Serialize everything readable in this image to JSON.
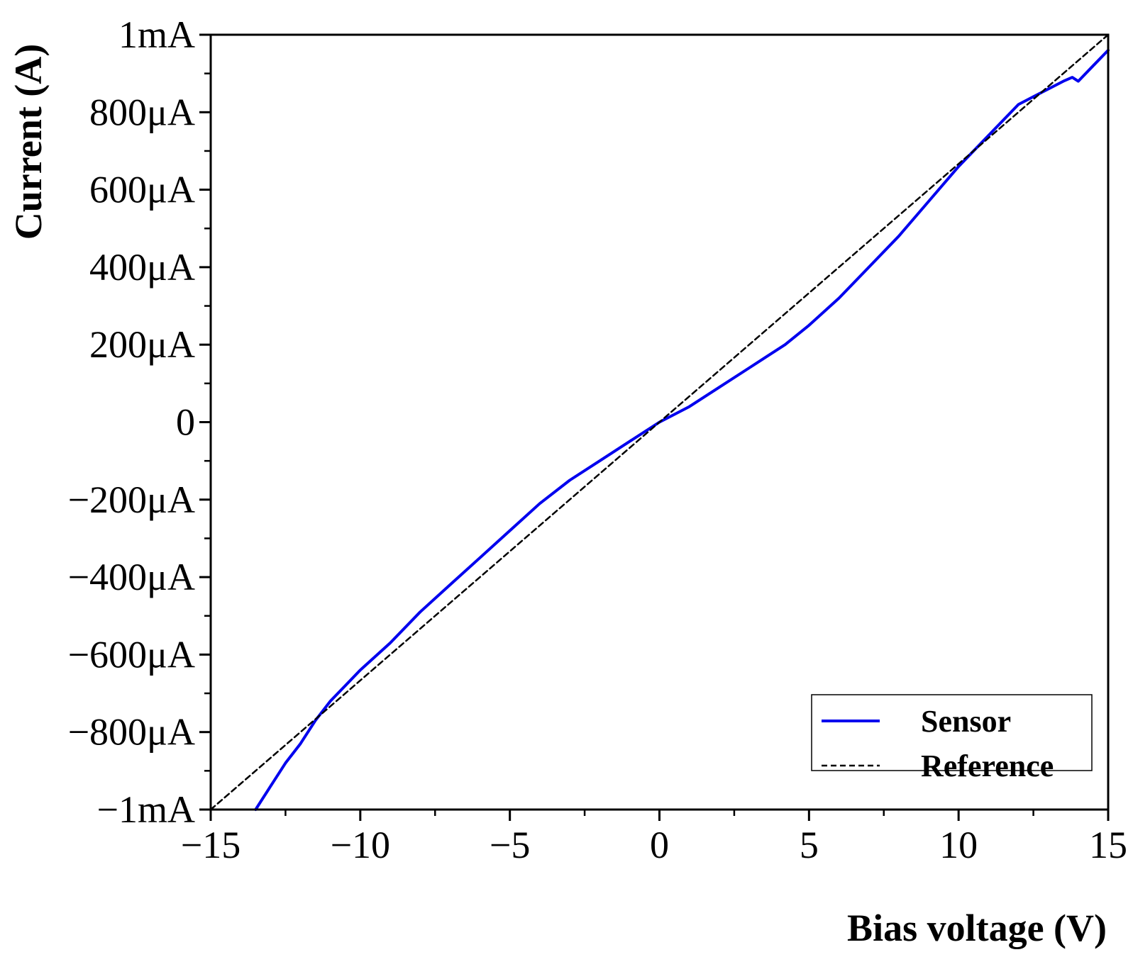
{
  "chart_data": {
    "type": "line",
    "title": "",
    "xlabel": "Bias voltage (V)",
    "ylabel": "Current (A)",
    "xlim": [
      -15,
      15
    ],
    "ylim": [
      -0.001,
      0.001
    ],
    "x_ticks": [
      -15,
      -10,
      -5,
      0,
      5,
      10,
      15
    ],
    "x_tick_labels": [
      "−15",
      "−10",
      "−5",
      "0",
      "5",
      "10",
      "15"
    ],
    "y_ticks": [
      -0.001,
      -0.0008,
      -0.0006,
      -0.0004,
      -0.0002,
      0,
      0.0002,
      0.0004,
      0.0006,
      0.0008,
      0.001
    ],
    "y_tick_labels": [
      "−1mA",
      "−800μA",
      "−600μA",
      "−400μA",
      "−200μA",
      "0",
      "200μA",
      "400μA",
      "600μA",
      "800μA",
      "1mA"
    ],
    "legend_position": "bottom-right",
    "series": [
      {
        "name": "Sensor",
        "color": "#0000ee",
        "style": "solid",
        "x": [
          -13.5,
          -13.0,
          -12.5,
          -12.0,
          -11.5,
          -11.0,
          -10.5,
          -10.0,
          -9.0,
          -8.0,
          -7.0,
          -6.0,
          -5.0,
          -4.0,
          -3.0,
          -2.0,
          -1.0,
          0.0,
          1.0,
          2.0,
          3.0,
          3.6,
          4.2,
          5.0,
          6.0,
          7.0,
          8.0,
          9.0,
          10.0,
          11.0,
          12.0,
          12.5,
          13.0,
          13.5,
          13.8,
          14.0,
          14.5,
          15.0
        ],
        "y": [
          -0.001,
          -0.00094,
          -0.00088,
          -0.00083,
          -0.00077,
          -0.00072,
          -0.00068,
          -0.00064,
          -0.00057,
          -0.00049,
          -0.00042,
          -0.00035,
          -0.00028,
          -0.00021,
          -0.00015,
          -0.0001,
          -5e-05,
          0.0,
          4e-05,
          9e-05,
          0.00014,
          0.00017,
          0.0002,
          0.00025,
          0.00032,
          0.0004,
          0.00048,
          0.00057,
          0.00066,
          0.00074,
          0.00082,
          0.00084,
          0.00086,
          0.00088,
          0.00089,
          0.00088,
          0.00092,
          0.00096
        ]
      },
      {
        "name": "Reference",
        "color": "#000000",
        "style": "dashed",
        "x": [
          -15,
          15
        ],
        "y": [
          -0.001,
          0.001
        ]
      }
    ]
  }
}
